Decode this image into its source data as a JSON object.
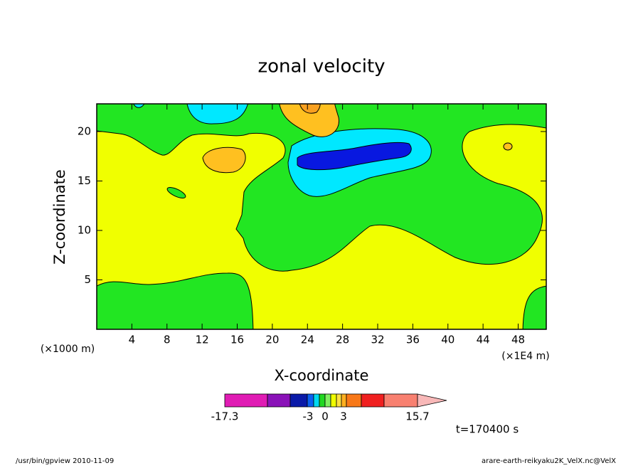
{
  "chart_data": {
    "type": "contour",
    "title": "zonal velocity",
    "xlabel": "X-coordinate",
    "ylabel": "Z-coordinate",
    "x_unit": "(×1E4 m)",
    "y_unit": "(×1000 m)",
    "xlim": [
      0,
      51.2
    ],
    "ylim": [
      0,
      22.8
    ],
    "xticks": [
      4,
      8,
      12,
      16,
      20,
      24,
      28,
      32,
      36,
      40,
      44,
      48
    ],
    "yticks": [
      5,
      10,
      15,
      20
    ],
    "colorbar": {
      "colors": [
        "#e01cb4",
        "#8a12b8",
        "#0a1aa8",
        "#0a60f0",
        "#00d8f0",
        "#20d820",
        "#80f060",
        "#f0ff00",
        "#ffe040",
        "#ffb020",
        "#f87818",
        "#f02020",
        "#f88070",
        "#f8b8b8"
      ],
      "ticks": [
        -17.3,
        -3,
        0,
        3,
        15.7
      ]
    },
    "time_label": "t=170400 s",
    "footer_left": "/usr/bin/gpview   2010-11-09",
    "footer_right": "arare-earth-reikyaku2K_VelX.nc@VelX"
  }
}
